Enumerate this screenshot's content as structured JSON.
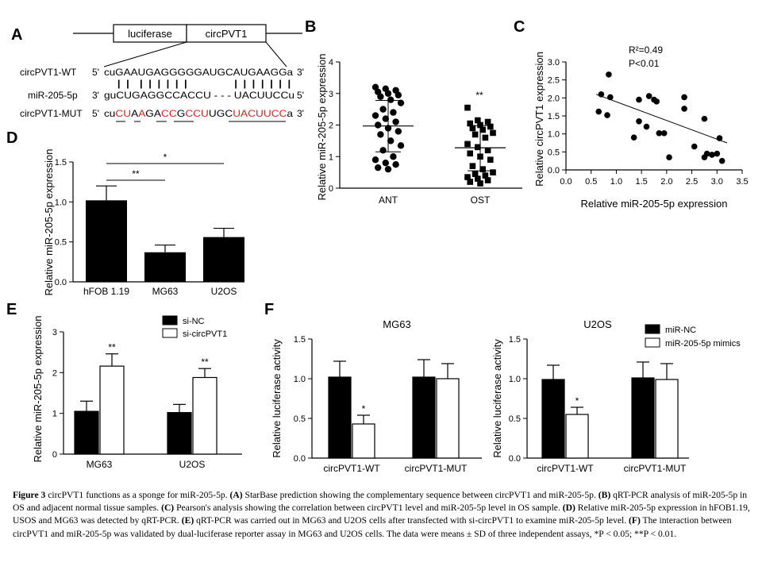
{
  "panel_letters": {
    "A": "A",
    "B": "B",
    "C": "C",
    "D": "D",
    "E": "E",
    "F": "F"
  },
  "panelA": {
    "gene_luciferase": "luciferase",
    "gene_circ": "circPVT1",
    "rows": [
      {
        "label": "circPVT1-WT",
        "prefix": "5'",
        "seq": "cuGAAUGAGGGGGAUGCAUGAAGGa",
        "suffix": "3'"
      },
      {
        "label": "miR-205-5p",
        "prefix": "3'",
        "seq": "guCUGAGGCCACCU - - - UACUUCCu",
        "suffix": "5'"
      },
      {
        "label": "circPVT1-MUT",
        "prefix": "5'",
        "seq": "cuCUAAGACCGCCUUGCUACUUCCa",
        "suffix": "3'"
      }
    ],
    "bonds": "| |  | | | | | |          | | | | | | |"
  },
  "chart_data": [
    {
      "panel": "B",
      "type": "scatter",
      "ylabel": "Relative miR-205-5p expression",
      "categories": [
        "ANT",
        "OST"
      ],
      "ylim": [
        0,
        4
      ],
      "yticks": [
        0,
        1,
        2,
        3,
        4
      ],
      "groups": [
        {
          "name": "ANT",
          "mean": 1.97,
          "sd_upper": 2.78,
          "sd_lower": 1.15,
          "points": [
            3.2,
            3.15,
            3.1,
            3.05,
            3.0,
            2.95,
            2.9,
            2.8,
            2.7,
            2.5,
            2.4,
            2.3,
            2.2,
            2.1,
            2.0,
            1.9,
            1.8,
            1.7,
            1.5,
            1.35,
            1.2,
            1.0,
            0.9,
            0.8,
            0.75,
            0.65,
            0.6
          ]
        },
        {
          "name": "OST",
          "mean": 1.28,
          "sd_upper": 1.98,
          "sd_lower": 0.55,
          "points": [
            2.55,
            2.15,
            2.1,
            2.05,
            2.0,
            1.95,
            1.9,
            1.85,
            1.75,
            1.7,
            1.6,
            1.4,
            1.3,
            1.2,
            1.1,
            1.0,
            0.9,
            0.7,
            0.6,
            0.5,
            0.45,
            0.4,
            0.35,
            0.3,
            0.25,
            0.2,
            0.15
          ]
        }
      ],
      "annotations": [
        {
          "group": "OST",
          "text": "**"
        }
      ]
    },
    {
      "panel": "C",
      "type": "scatter",
      "xlabel": "Relative miR-205-5p expression",
      "ylabel": "Relative circPVT1 expression",
      "xlim": [
        0,
        3.5
      ],
      "ylim": [
        0,
        3
      ],
      "xticks": [
        0,
        0.5,
        1.0,
        1.5,
        2.0,
        2.5,
        3.0,
        3.5
      ],
      "yticks": [
        0,
        0.5,
        1.0,
        1.5,
        2.0,
        2.5,
        3.0
      ],
      "stats": [
        "R²=0.49",
        "P<0.01"
      ],
      "fit": {
        "x0": 0.6,
        "y0": 2.1,
        "x1": 3.2,
        "y1": 0.75
      },
      "points": [
        [
          0.85,
          2.65
        ],
        [
          0.7,
          2.1
        ],
        [
          0.88,
          2.02
        ],
        [
          0.65,
          1.62
        ],
        [
          0.82,
          1.52
        ],
        [
          1.45,
          1.95
        ],
        [
          1.65,
          2.05
        ],
        [
          1.75,
          1.95
        ],
        [
          1.8,
          1.9
        ],
        [
          2.35,
          2.02
        ],
        [
          2.35,
          1.7
        ],
        [
          1.45,
          1.35
        ],
        [
          1.6,
          1.2
        ],
        [
          1.85,
          1.02
        ],
        [
          1.95,
          1.02
        ],
        [
          1.35,
          0.9
        ],
        [
          2.05,
          0.35
        ],
        [
          2.55,
          0.65
        ],
        [
          2.75,
          1.42
        ],
        [
          3.05,
          0.88
        ],
        [
          2.8,
          0.45
        ],
        [
          2.9,
          0.42
        ],
        [
          3.0,
          0.45
        ],
        [
          2.75,
          0.35
        ],
        [
          3.1,
          0.25
        ]
      ]
    },
    {
      "panel": "D",
      "type": "bar",
      "ylabel": "Relative miR-205-5p expression",
      "categories": [
        "hFOB 1.19",
        "MG63",
        "U2OS"
      ],
      "values": [
        1.02,
        0.37,
        0.56
      ],
      "errors": [
        0.18,
        0.09,
        0.11
      ],
      "ylim": [
        0,
        1.5
      ],
      "yticks": [
        "0.0",
        "0.5",
        "1.0",
        "1.5"
      ],
      "brackets": [
        {
          "from": 0,
          "to": 1,
          "text": "**"
        },
        {
          "from": 0,
          "to": 2,
          "text": "*"
        }
      ]
    },
    {
      "panel": "E",
      "type": "bar",
      "ylabel": "Relative miR-205-5p expression",
      "categories": [
        "MG63",
        "U2OS"
      ],
      "series": [
        {
          "name": "si-NC",
          "color": "#000000",
          "values": [
            1.05,
            1.02
          ],
          "errors": [
            0.25,
            0.2
          ]
        },
        {
          "name": "si-circPVT1",
          "color": "#ffffff",
          "values": [
            2.16,
            1.88
          ],
          "errors": [
            0.3,
            0.22
          ]
        }
      ],
      "ylim": [
        0,
        3
      ],
      "yticks": [
        "0",
        "1",
        "2",
        "3"
      ],
      "annotations": [
        "**",
        "**"
      ]
    },
    {
      "panel": "F",
      "type": "bar",
      "title": "MG63",
      "ylabel": "Relative luciferase activity",
      "categories": [
        "circPVT1-WT",
        "circPVT1-MUT"
      ],
      "series": [
        {
          "name": "miR-NC",
          "color": "#000000",
          "values": [
            1.02,
            1.02
          ],
          "errors": [
            0.2,
            0.22
          ]
        },
        {
          "name": "miR-205-5p mimics",
          "color": "#ffffff",
          "values": [
            0.43,
            1.0
          ],
          "errors": [
            0.11,
            0.19
          ]
        }
      ],
      "ylim": [
        0,
        1.5
      ],
      "yticks": [
        "0.0",
        "0.5",
        "1.0",
        "1.5"
      ],
      "annotations": [
        "*",
        ""
      ]
    },
    {
      "panel": "F",
      "type": "bar",
      "title": "U2OS",
      "ylabel": "Relative luciferase activity",
      "categories": [
        "circPVT1-WT",
        "circPVT1-MUT"
      ],
      "series": [
        {
          "name": "miR-NC",
          "color": "#000000",
          "values": [
            0.99,
            1.01
          ],
          "errors": [
            0.18,
            0.2
          ]
        },
        {
          "name": "miR-205-5p mimics",
          "color": "#ffffff",
          "values": [
            0.55,
            0.99
          ],
          "errors": [
            0.09,
            0.2
          ]
        }
      ],
      "ylim": [
        0,
        1.5
      ],
      "yticks": [
        "0.0",
        "0.5",
        "1.0",
        "1.5"
      ],
      "annotations": [
        "*",
        ""
      ]
    }
  ],
  "caption": {
    "fig_label": "Figure 3",
    "title": " circPVT1 functions as a sponge for miR-205-5p. ",
    "parts": [
      {
        "b": "(A)",
        "t": " StarBase prediction showing the complementary sequence between circPVT1 and miR-205-5p. "
      },
      {
        "b": "(B)",
        "t": " qRT-PCR analysis of miR-205-5p in OS and adjacent normal tissue samples. "
      },
      {
        "b": "(C)",
        "t": " Pearson's analysis showing the correlation between circPVT1 level and miR-205-5p level in OS sample. "
      },
      {
        "b": "(D)",
        "t": " Relative miR-205-5p expression in hFOB1.19, USOS and MG63 was detected by qRT-PCR. "
      },
      {
        "b": "(E)",
        "t": " qRT-PCR was carried out in MG63 and U2OS cells after transfected with si-circPVT1 to examine miR-205-5p level. "
      },
      {
        "b": "(F)",
        "t": " The interaction between circPVT1 and miR-205-5p was validated by dual-luciferase reporter assay in MG63 and U2OS cells. The data were means ± SD of three independent assays, *P < 0.05; **P < 0.01."
      }
    ]
  }
}
